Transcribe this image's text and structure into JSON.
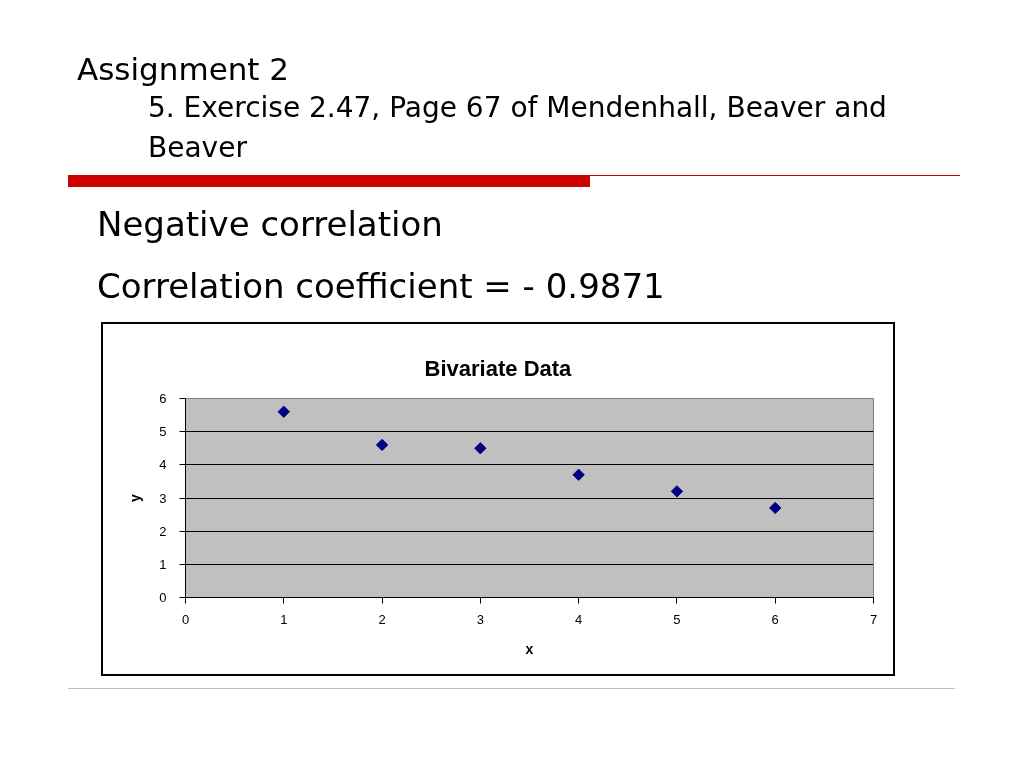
{
  "chart_data": {
    "type": "scatter",
    "title": "Bivariate Data",
    "xlabel": "x",
    "ylabel": "y",
    "x": [
      1,
      2,
      3,
      4,
      5,
      6
    ],
    "values": [
      5.6,
      4.6,
      4.5,
      3.7,
      3.2,
      2.7
    ],
    "color": "#000080",
    "marker": "diamond",
    "xlim": [
      0,
      7
    ],
    "ylim": [
      0,
      6
    ],
    "xticks": [
      0,
      1,
      2,
      3,
      4,
      5,
      6,
      7
    ],
    "yticks": [
      0,
      1,
      2,
      3,
      4,
      5,
      6
    ],
    "grid": "y",
    "annotations": [
      "Assignment 2",
      "5. Exercise 2.47, Page 67 of Mendenhall, Beaver and Beaver",
      "Negative correlation",
      "Correlation coefficient = - 0.9871"
    ]
  }
}
